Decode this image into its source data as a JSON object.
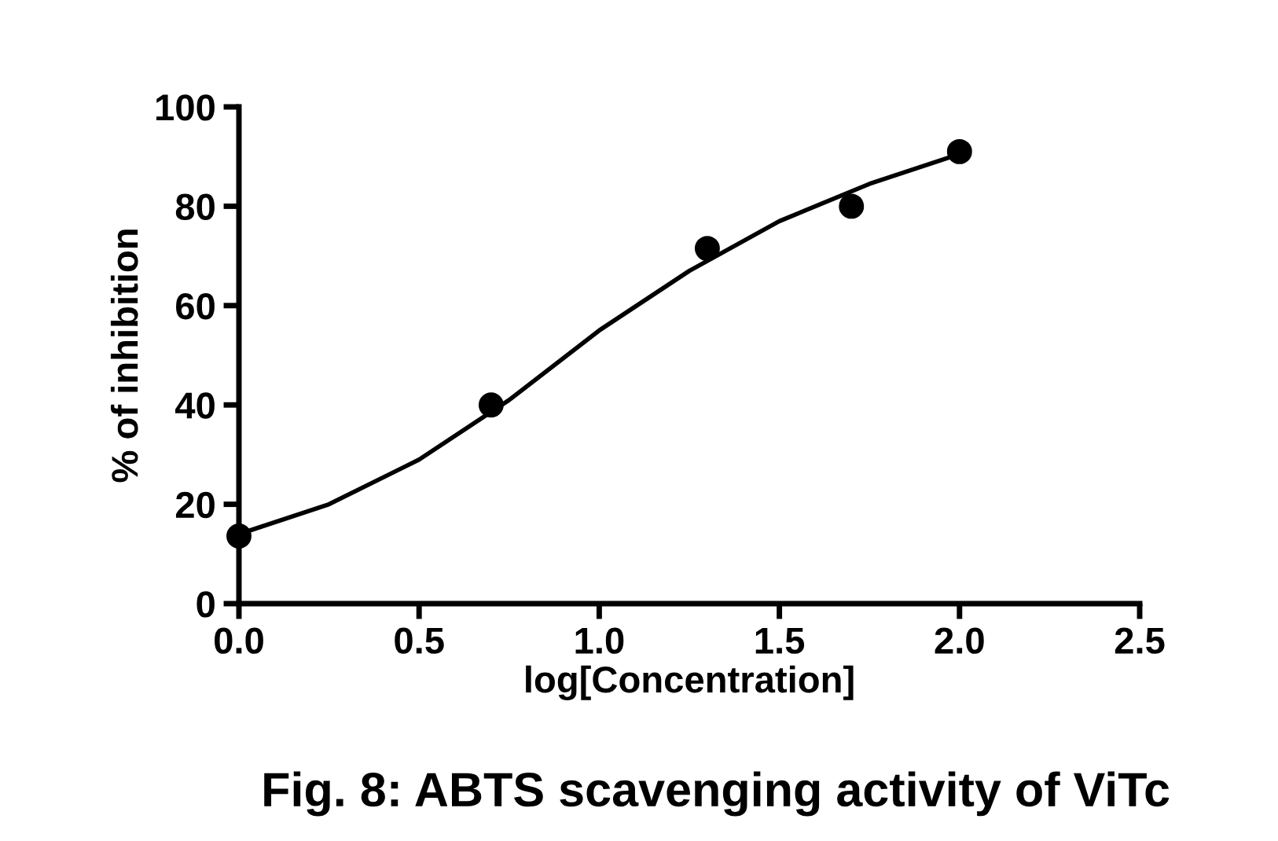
{
  "chart_data": {
    "type": "scatter",
    "title": "Fig. 8: ABTS scavenging activity of ViTc",
    "xlabel": "log[Concentration]",
    "ylabel": "% of inhibition",
    "series": [
      {
        "color": "#000000",
        "marker": "circle",
        "x": [
          0.0,
          0.7,
          1.3,
          1.7,
          2.0
        ],
        "values": [
          13.6,
          40,
          71.5,
          80,
          91
        ]
      },
      {
        "type": "line",
        "color": "#000000",
        "marker": "none",
        "x": [
          0.0,
          0.25,
          0.5,
          0.75,
          1.0,
          1.25,
          1.5,
          1.75,
          2.0
        ],
        "values": [
          14,
          20,
          29,
          41,
          55,
          67,
          77,
          84.5,
          90.5
        ]
      }
    ],
    "xlim": [
      0,
      2.5
    ],
    "ylim": [
      0,
      100
    ],
    "xticks": [
      {
        "value": 0,
        "label": "0.0"
      },
      {
        "value": 0.5,
        "label": "0.5"
      },
      {
        "value": 1,
        "label": "1.0"
      },
      {
        "value": 1.5,
        "label": "1.5"
      },
      {
        "value": 2,
        "label": "2.0"
      },
      {
        "value": 2.5,
        "label": "2.5"
      }
    ],
    "yticks": [
      0,
      20,
      40,
      60,
      80,
      100
    ],
    "grid": false,
    "legend": false
  }
}
